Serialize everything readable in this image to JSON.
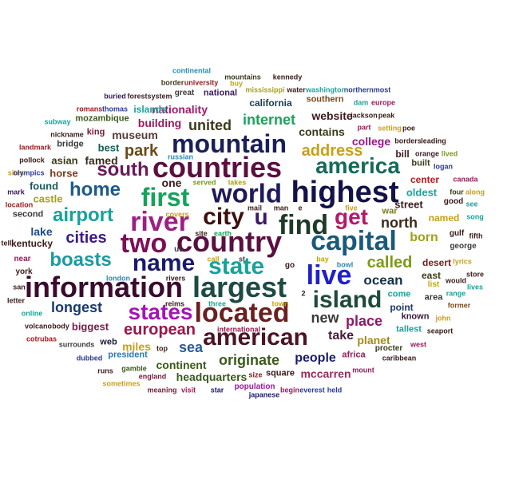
{
  "words": [
    {
      "text": "information",
      "color": "#3b0a2e"
    },
    {
      "text": "largest",
      "color": "#1e4a44"
    },
    {
      "text": "highest",
      "color": "#14124a"
    },
    {
      "text": "countries",
      "color": "#5a0f3f"
    },
    {
      "text": "country",
      "color": "#5a0f3f"
    },
    {
      "text": "located",
      "color": "#6b1f1f"
    },
    {
      "text": "mountain",
      "color": "#1a1f5a"
    },
    {
      "text": "world",
      "color": "#1e1a5a"
    },
    {
      "text": "capital",
      "color": "#1a5a7a"
    },
    {
      "text": "city",
      "color": "#3d0f0f"
    },
    {
      "text": "name",
      "color": "#1a1a6b"
    },
    {
      "text": "american",
      "color": "#4a1426"
    },
    {
      "text": "river",
      "color": "#9d1f86"
    },
    {
      "text": "two",
      "color": "#7a0f5a"
    },
    {
      "text": "live",
      "color": "#2020c8"
    },
    {
      "text": "island",
      "color": "#1f4a3a"
    },
    {
      "text": "find",
      "color": "#1f3a2a"
    },
    {
      "text": "first",
      "color": "#14a35a"
    },
    {
      "text": "state",
      "color": "#16a39a"
    },
    {
      "text": "america",
      "color": "#146b5a"
    },
    {
      "text": "get",
      "color": "#b4186b"
    },
    {
      "text": "u",
      "color": "#3a1a6b"
    },
    {
      "text": "states",
      "color": "#a316b4"
    },
    {
      "text": "south",
      "color": "#6b1a5a"
    },
    {
      "text": "home",
      "color": "#1f5a8a"
    },
    {
      "text": "airport",
      "color": "#14a39a"
    },
    {
      "text": "boasts",
      "color": "#1a9aa3"
    },
    {
      "text": "european",
      "color": "#9a164a"
    },
    {
      "text": "cities",
      "color": "#3a1a8a"
    },
    {
      "text": "called",
      "color": "#7a9a16"
    },
    {
      "text": "ocean",
      "color": "#14304a"
    },
    {
      "text": "united",
      "color": "#3a3a1a"
    },
    {
      "text": "park",
      "color": "#6b4a1a"
    },
    {
      "text": "address",
      "color": "#c8a014"
    },
    {
      "text": "internet",
      "color": "#1aa35a"
    },
    {
      "text": "originate",
      "color": "#3a5a1a"
    },
    {
      "text": "longest",
      "color": "#1a3a6b"
    },
    {
      "text": "sea",
      "color": "#2a5a9a"
    },
    {
      "text": "place",
      "color": "#8a1a6b"
    },
    {
      "text": "new",
      "color": "#3a3a3a"
    },
    {
      "text": "north",
      "color": "#3a2a1a"
    },
    {
      "text": "born",
      "color": "#9aa314"
    },
    {
      "text": "take",
      "color": "#4a1a3a"
    },
    {
      "text": "people",
      "color": "#1a1a6b"
    },
    {
      "text": "planet",
      "color": "#a38a14"
    },
    {
      "text": "mccarren",
      "color": "#9a2a5a"
    },
    {
      "text": "continent",
      "color": "#3a5a14"
    },
    {
      "text": "headquarters",
      "color": "#3a5a1a"
    },
    {
      "text": "museum",
      "color": "#5a3a3a"
    },
    {
      "text": "building",
      "color": "#9a1a5a"
    },
    {
      "text": "nationality",
      "color": "#a31a6b"
    },
    {
      "text": "contains",
      "color": "#3a3a1a"
    },
    {
      "text": "college",
      "color": "#9a148a"
    },
    {
      "text": "website",
      "color": "#3a1a1a"
    },
    {
      "text": "biggest",
      "color": "#7a1a4a"
    },
    {
      "text": "miles",
      "color": "#c8a014"
    },
    {
      "text": "lake",
      "color": "#1a4a8a"
    },
    {
      "text": "famed",
      "color": "#3a2a1a"
    },
    {
      "text": "asian",
      "color": "#3a3a1a"
    },
    {
      "text": "best",
      "color": "#1a5a5a"
    },
    {
      "text": "one",
      "color": "#3a1a1a"
    },
    {
      "text": "horse",
      "color": "#7a3a1a"
    },
    {
      "text": "found",
      "color": "#1a5a5a"
    },
    {
      "text": "castle",
      "color": "#a3a314"
    },
    {
      "text": "bridge",
      "color": "#3a3a3a"
    },
    {
      "text": "king",
      "color": "#7a1a3a"
    },
    {
      "text": "kentucky",
      "color": "#3a1a1a"
    },
    {
      "text": "second",
      "color": "#3a3a3a"
    },
    {
      "text": "mozambique",
      "color": "#3a5a1a"
    },
    {
      "text": "islands",
      "color": "#16a39a"
    },
    {
      "text": "california",
      "color": "#1a3a5a"
    },
    {
      "text": "southern",
      "color": "#7a4a1a"
    },
    {
      "text": "great",
      "color": "#3a3a3a"
    },
    {
      "text": "national",
      "color": "#3a1a5a"
    },
    {
      "text": "war",
      "color": "#7a7a14"
    },
    {
      "text": "street",
      "color": "#3a1a1a"
    },
    {
      "text": "named",
      "color": "#c8a014"
    },
    {
      "text": "oldest",
      "color": "#16a39a"
    },
    {
      "text": "center",
      "color": "#b41a1a"
    },
    {
      "text": "built",
      "color": "#3a3a1a"
    },
    {
      "text": "bill",
      "color": "#3a1a1a"
    },
    {
      "text": "east",
      "color": "#3a3a1a"
    },
    {
      "text": "desert",
      "color": "#7a1a1a"
    },
    {
      "text": "area",
      "color": "#3a3a3a"
    },
    {
      "text": "come",
      "color": "#16a39a"
    },
    {
      "text": "point",
      "color": "#1a3a6b"
    },
    {
      "text": "known",
      "color": "#3a1a3a"
    },
    {
      "text": "tallest",
      "color": "#16a39a"
    },
    {
      "text": "africa",
      "color": "#9a1a5a"
    },
    {
      "text": "square",
      "color": "#3a1a1a"
    },
    {
      "text": "president",
      "color": "#2a7ab4"
    },
    {
      "text": "web",
      "color": "#1a1a3a"
    },
    {
      "text": "near",
      "color": "#9a1a5a"
    },
    {
      "text": "york",
      "color": "#3a1a1a"
    },
    {
      "text": "us",
      "color": "#3a3a3a"
    },
    {
      "text": "go",
      "color": "#3a1a1a"
    },
    {
      "text": "list",
      "color": "#c8a014"
    },
    {
      "text": "good",
      "color": "#3a1a1a"
    },
    {
      "text": "four",
      "color": "#3a3a1a"
    },
    {
      "text": "gulf",
      "color": "#3a1a1a"
    },
    {
      "text": "george",
      "color": "#3a3a3a"
    },
    {
      "text": "fifth",
      "color": "#3a1a1a"
    },
    {
      "text": "lakes",
      "color": "#a3a314"
    },
    {
      "text": "served",
      "color": "#7a9a16"
    },
    {
      "text": "russian",
      "color": "#2a8ab4"
    },
    {
      "text": "mail",
      "color": "#3a1a1a"
    },
    {
      "text": "man",
      "color": "#3a1a1a"
    },
    {
      "text": "five",
      "color": "#c8a014"
    },
    {
      "text": "st",
      "color": "#3a3a3a"
    },
    {
      "text": "earth",
      "color": "#16a35a"
    },
    {
      "text": "site",
      "color": "#3a1a1a"
    },
    {
      "text": "covers",
      "color": "#c8a014"
    },
    {
      "text": "call",
      "color": "#c8a014"
    },
    {
      "text": "rivers",
      "color": "#3a1a1a"
    },
    {
      "text": "london",
      "color": "#2a8ab4"
    },
    {
      "text": "reims",
      "color": "#3a1a1a"
    },
    {
      "text": "three",
      "color": "#16a39a"
    },
    {
      "text": "town",
      "color": "#c8a014"
    },
    {
      "text": "bay",
      "color": "#c8a014"
    },
    {
      "text": "bowl",
      "color": "#2a8ab4"
    },
    {
      "text": "international",
      "color": "#9a164a"
    },
    {
      "text": "top",
      "color": "#3a1a1a"
    },
    {
      "text": "surrounds",
      "color": "#3a3a3a"
    },
    {
      "text": "body",
      "color": "#3a1a1a"
    },
    {
      "text": "volcano",
      "color": "#3a1a1a"
    },
    {
      "text": "cotrubas",
      "color": "#9a1a1a"
    },
    {
      "text": "dubbed",
      "color": "#2a3a9a"
    },
    {
      "text": "runs",
      "color": "#3a1a1a"
    },
    {
      "text": "gamble",
      "color": "#3a5a1a"
    },
    {
      "text": "england",
      "color": "#7a1a3a"
    },
    {
      "text": "sometimes",
      "color": "#c8a014"
    },
    {
      "text": "meaning",
      "color": "#7a1a3a"
    },
    {
      "text": "visit",
      "color": "#9a1a5a"
    },
    {
      "text": "star",
      "color": "#1a1a6b"
    },
    {
      "text": "population",
      "color": "#9a1a9a"
    },
    {
      "text": "size",
      "color": "#7a1a1a"
    },
    {
      "text": "japanese",
      "color": "#1a1a6b"
    },
    {
      "text": "begin",
      "color": "#9a1a5a"
    },
    {
      "text": "everest",
      "color": "#2a3a9a"
    },
    {
      "text": "held",
      "color": "#2a3a9a"
    },
    {
      "text": "mount",
      "color": "#9a1a5a"
    },
    {
      "text": "procter",
      "color": "#3a3a1a"
    },
    {
      "text": "caribbean",
      "color": "#3a1a1a"
    },
    {
      "text": "west",
      "color": "#9a1a5a"
    },
    {
      "text": "seaport",
      "color": "#3a1a1a"
    },
    {
      "text": "john",
      "color": "#c8a014"
    },
    {
      "text": "former",
      "color": "#7a4a1a"
    },
    {
      "text": "lives",
      "color": "#16a39a"
    },
    {
      "text": "would",
      "color": "#3a1a1a"
    },
    {
      "text": "store",
      "color": "#3a1a1a"
    },
    {
      "text": "range",
      "color": "#16a39a"
    },
    {
      "text": "lyrics",
      "color": "#c8a014"
    },
    {
      "text": "song",
      "color": "#16a39a"
    },
    {
      "text": "along",
      "color": "#c8a014"
    },
    {
      "text": "canada",
      "color": "#9a1a5a"
    },
    {
      "text": "see",
      "color": "#16a39a"
    },
    {
      "text": "logan",
      "color": "#2a3a9a"
    },
    {
      "text": "lived",
      "color": "#7a9a16"
    },
    {
      "text": "orange",
      "color": "#3a1a1a"
    },
    {
      "text": "borders",
      "color": "#3a1a1a"
    },
    {
      "text": "leading",
      "color": "#3a1a1a"
    },
    {
      "text": "setting",
      "color": "#c8a014"
    },
    {
      "text": "poe",
      "color": "#3a1a1a"
    },
    {
      "text": "jackson",
      "color": "#3a1a1a"
    },
    {
      "text": "peak",
      "color": "#3a1a1a"
    },
    {
      "text": "dam",
      "color": "#16a39a"
    },
    {
      "text": "europe",
      "color": "#9a1a5a"
    },
    {
      "text": "northernmost",
      "color": "#2a3a9a"
    },
    {
      "text": "washington",
      "color": "#16a39a"
    },
    {
      "text": "water",
      "color": "#3a1a1a"
    },
    {
      "text": "mississippi",
      "color": "#a3a314"
    },
    {
      "text": "buy",
      "color": "#c8a014"
    },
    {
      "text": "kennedy",
      "color": "#3a1a1a"
    },
    {
      "text": "mountains",
      "color": "#3a3a1a"
    },
    {
      "text": "continental",
      "color": "#2a8ab4"
    },
    {
      "text": "border",
      "color": "#3a3a1a"
    },
    {
      "text": "university",
      "color": "#9a1a1a"
    },
    {
      "text": "buried",
      "color": "#3a1a5a"
    },
    {
      "text": "forest",
      "color": "#3a1a1a"
    },
    {
      "text": "system",
      "color": "#3a1a1a"
    },
    {
      "text": "romans",
      "color": "#9a1a1a"
    },
    {
      "text": "thomas",
      "color": "#2a3a9a"
    },
    {
      "text": "subway",
      "color": "#16a39a"
    },
    {
      "text": "nickname",
      "color": "#3a1a1a"
    },
    {
      "text": "landmark",
      "color": "#9a1a1a"
    },
    {
      "text": "pollock",
      "color": "#3a1a1a"
    },
    {
      "text": "sites",
      "color": "#c8a014"
    },
    {
      "text": "olympics",
      "color": "#2a3a9a"
    },
    {
      "text": "mark",
      "color": "#3a1a5a"
    },
    {
      "text": "location",
      "color": "#9a1a1a"
    },
    {
      "text": "tell",
      "color": "#3a1a1a"
    },
    {
      "text": "san",
      "color": "#3a1a1a"
    },
    {
      "text": "letter",
      "color": "#3a1a1a"
    },
    {
      "text": "online",
      "color": "#16a39a"
    },
    {
      "text": "part",
      "color": "#9a1a5a"
    },
    {
      "text": "e",
      "color": "#3a1a1a"
    },
    {
      "text": "2",
      "color": "#3a1a1a"
    }
  ]
}
